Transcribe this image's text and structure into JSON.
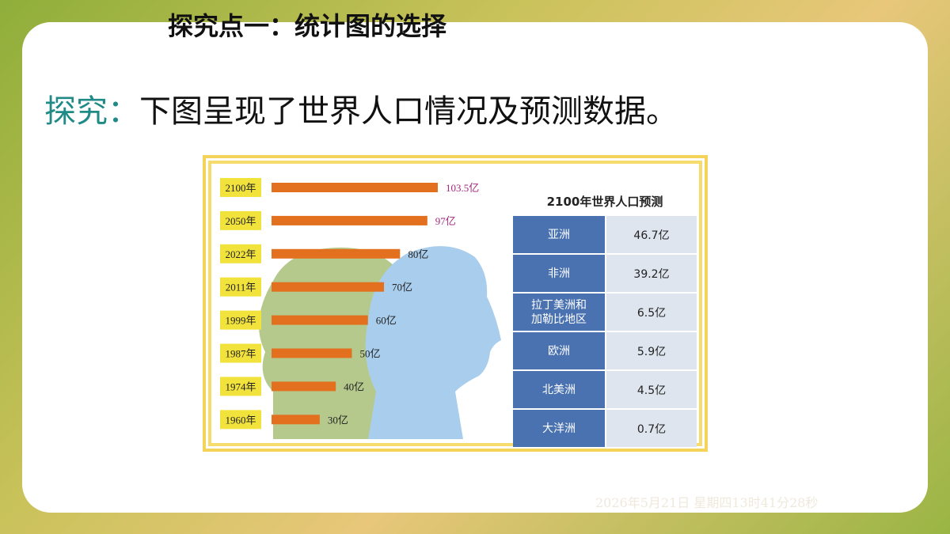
{
  "header": {
    "title": "探究点一：统计图的选择"
  },
  "prompt": {
    "label": "探究：",
    "text": "下图呈现了世界人口情况及预测数据。"
  },
  "chart_data": {
    "type": "bar",
    "orientation": "horizontal",
    "categories": [
      "2100年",
      "2050年",
      "2022年",
      "2011年",
      "1999年",
      "1987年",
      "1974年",
      "1960年"
    ],
    "values": [
      103.5,
      97,
      80,
      70,
      60,
      50,
      40,
      30
    ],
    "value_labels": [
      "103.5亿",
      "97亿",
      "80亿",
      "70亿",
      "60亿",
      "50亿",
      "40亿",
      "30亿"
    ],
    "color": "#e2701f",
    "label_colors": [
      "#a3287e",
      "#a3287e",
      "#222222",
      "#222222",
      "#222222",
      "#222222",
      "#222222",
      "#222222"
    ]
  },
  "table": {
    "title": "2100年世界人口预测",
    "rows": [
      [
        "亚洲",
        "46.7亿"
      ],
      [
        "非洲",
        "39.2亿"
      ],
      [
        "拉丁美洲和加勒比地区",
        "6.5亿"
      ],
      [
        "欧洲",
        "5.9亿"
      ],
      [
        "北美洲",
        "4.5亿"
      ],
      [
        "大洋洲",
        "0.7亿"
      ]
    ]
  },
  "footer": {
    "timestamp": "2026年5月21日 星期四13时41分28秒"
  }
}
